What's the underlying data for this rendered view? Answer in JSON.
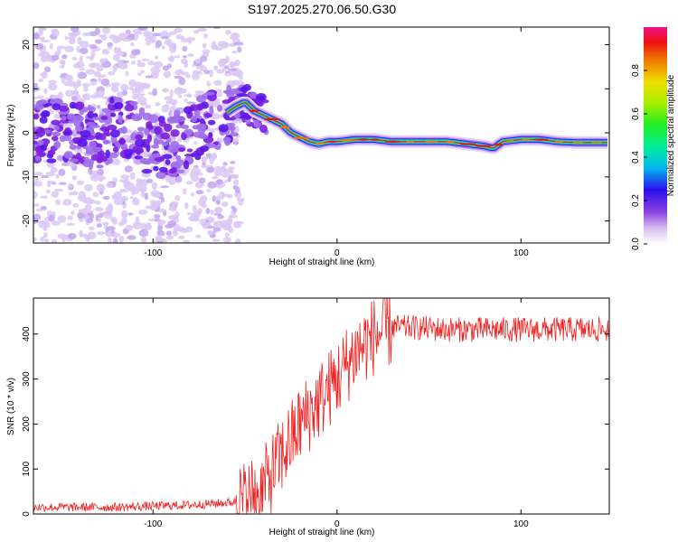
{
  "title": "S197.2025.270.06.50.G30",
  "colors": {
    "axis": "#000000",
    "snr_line": "#ee2222",
    "background": "#ffffff"
  },
  "chart_data": [
    {
      "type": "heatmap",
      "name": "spectrogram",
      "xlabel": "Height of straight line (km)",
      "ylabel": "Frequency (Hz)",
      "xlim": [
        -165,
        148
      ],
      "ylim": [
        -25,
        24
      ],
      "xticks": [
        -100,
        0,
        100
      ],
      "yticks": [
        -20,
        -10,
        0,
        10,
        20
      ],
      "colorbar": {
        "label": "Normalized spectral amplitude",
        "range": [
          0,
          1
        ],
        "ticks": [
          "0.0",
          "0.2",
          "0.4",
          "0.6",
          "0.8"
        ],
        "tick_values": [
          0.0,
          0.2,
          0.4,
          0.6,
          0.8
        ]
      },
      "ridge": {
        "x": [
          -165,
          -150,
          -140,
          -130,
          -120,
          -110,
          -100,
          -92,
          -85,
          -78,
          -70,
          -62,
          -55,
          -50,
          -45,
          -40,
          -35,
          -30,
          -25,
          -20,
          -15,
          -10,
          -5,
          0,
          10,
          20,
          30,
          40,
          50,
          60,
          70,
          80,
          85,
          90,
          100,
          110,
          120,
          130,
          148
        ],
        "y": [
          0,
          1,
          0,
          -1,
          1,
          0,
          -3,
          -4,
          -2,
          0,
          2,
          4,
          6,
          7,
          5,
          4,
          3,
          2,
          0,
          -1,
          -2,
          -2.5,
          -2,
          -2,
          -1.5,
          -1.5,
          -2,
          -2,
          -2,
          -2,
          -2.5,
          -3,
          -3.5,
          -2,
          -1.5,
          -1.5,
          -2,
          -2.2,
          -2.2
        ]
      }
    },
    {
      "type": "line",
      "name": "snr",
      "xlabel": "Height of straight line (km)",
      "ylabel": "SNR (10 * v/v)",
      "xlim": [
        -165,
        148
      ],
      "ylim": [
        0,
        480
      ],
      "xticks": [
        -100,
        0,
        100
      ],
      "yticks": [
        0,
        100,
        200,
        300,
        400
      ],
      "trend": {
        "x": [
          -165,
          -120,
          -80,
          -60,
          -50,
          -40,
          -30,
          -20,
          -10,
          0,
          10,
          20,
          30,
          40,
          60,
          80,
          100,
          120,
          148
        ],
        "y": [
          15,
          15,
          20,
          25,
          30,
          60,
          130,
          200,
          250,
          300,
          360,
          395,
          415,
          415,
          410,
          410,
          410,
          410,
          410
        ]
      }
    }
  ]
}
